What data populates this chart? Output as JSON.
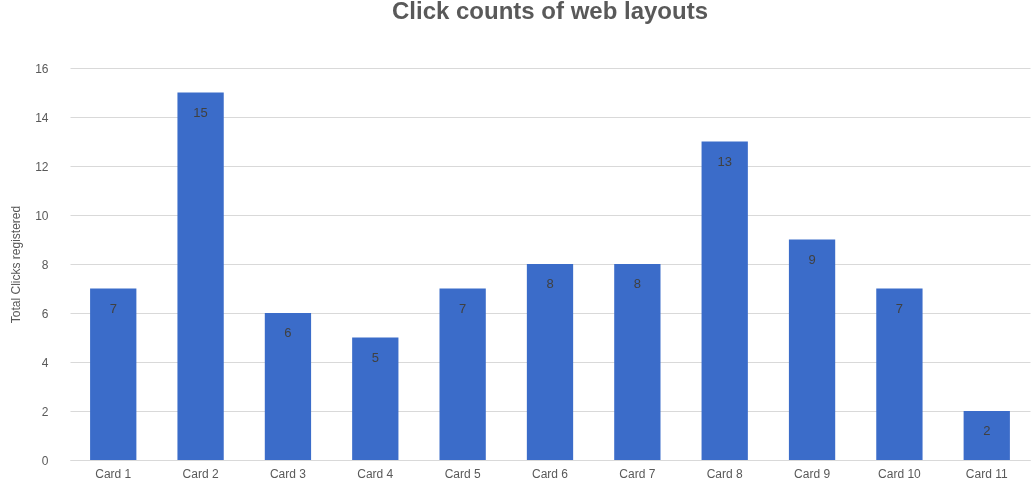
{
  "chart_data": {
    "type": "bar",
    "title": "Click counts of web layouts",
    "ylabel": "Total Clicks registered",
    "categories": [
      "Card 1",
      "Card 2",
      "Card 3",
      "Card 4",
      "Card 5",
      "Card 6",
      "Card 7",
      "Card 8",
      "Card 9",
      "Card 10",
      "Card 11"
    ],
    "values": [
      7,
      15,
      6,
      5,
      7,
      8,
      8,
      13,
      9,
      7,
      2
    ],
    "color": "#3b6cc9",
    "ylim": [
      0,
      16
    ],
    "yticks": [
      0,
      2,
      4,
      6,
      8,
      10,
      12,
      14,
      16
    ],
    "grid": "y",
    "data_labels": true
  }
}
